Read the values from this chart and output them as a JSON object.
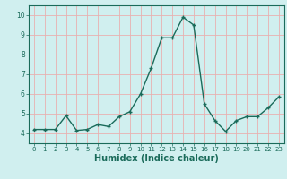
{
  "x": [
    0,
    1,
    2,
    3,
    4,
    5,
    6,
    7,
    8,
    9,
    10,
    11,
    12,
    13,
    14,
    15,
    16,
    17,
    18,
    19,
    20,
    21,
    22,
    23
  ],
  "y": [
    4.2,
    4.2,
    4.2,
    4.9,
    4.15,
    4.2,
    4.45,
    4.35,
    4.85,
    5.1,
    6.0,
    7.3,
    8.85,
    8.85,
    9.9,
    9.5,
    5.5,
    4.65,
    4.1,
    4.65,
    4.85,
    4.85,
    5.3,
    5.85
  ],
  "line_color": "#1a6b5a",
  "marker": "+",
  "marker_size": 3.5,
  "bg_color": "#d0efef",
  "grid_color": "#e8b0b0",
  "tick_color": "#1a6b5a",
  "label_color": "#1a6b5a",
  "xlabel": "Humidex (Indice chaleur)",
  "xlabel_fontsize": 7,
  "xlim": [
    -0.5,
    23.5
  ],
  "ylim": [
    3.5,
    10.5
  ],
  "yticks": [
    4,
    5,
    6,
    7,
    8,
    9,
    10
  ],
  "xticks": [
    0,
    1,
    2,
    3,
    4,
    5,
    6,
    7,
    8,
    9,
    10,
    11,
    12,
    13,
    14,
    15,
    16,
    17,
    18,
    19,
    20,
    21,
    22,
    23
  ],
  "tick_fontsize": 5,
  "ytick_fontsize": 5.5,
  "linewidth": 1.0,
  "marker_color": "#1a6b5a"
}
